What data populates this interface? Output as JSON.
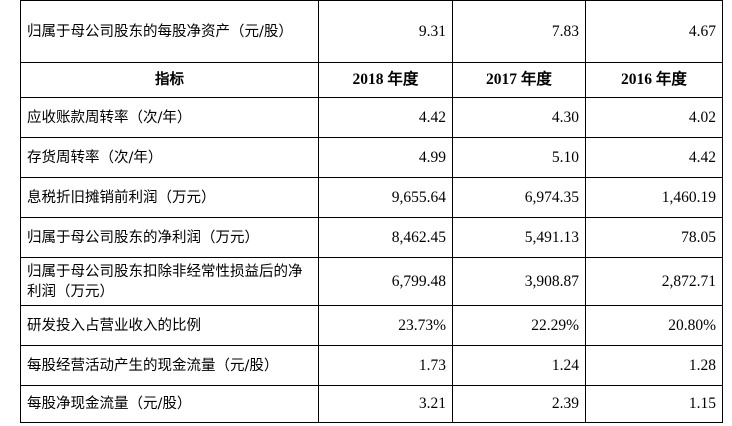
{
  "table": {
    "rows": [
      [
        "归属于母公司股东的每股净资产（元/股）",
        "9.31",
        "7.83",
        "4.67"
      ],
      [
        "指标",
        "2018 年度",
        "2017 年度",
        "2016 年度"
      ],
      [
        "应收账款周转率（次/年）",
        "4.42",
        "4.30",
        "4.02"
      ],
      [
        "存货周转率（次/年）",
        "4.99",
        "5.10",
        "4.42"
      ],
      [
        "息税折旧摊销前利润（万元）",
        "9,655.64",
        "6,974.35",
        "1,460.19"
      ],
      [
        "归属于母公司股东的净利润（万元）",
        "8,462.45",
        "5,491.13",
        "78.05"
      ],
      [
        "归属于母公司股东扣除非经常性损益后的净利润（万元）",
        "6,799.48",
        "3,908.87",
        "2,872.71"
      ],
      [
        "研发投入占营业收入的比例",
        "23.73%",
        "22.29%",
        "20.80%"
      ],
      [
        "每股经营活动产生的现金流量（元/股）",
        "1.73",
        "1.24",
        "1.28"
      ],
      [
        "每股净现金流量（元/股）",
        "3.21",
        "2.39",
        "1.15"
      ]
    ]
  }
}
